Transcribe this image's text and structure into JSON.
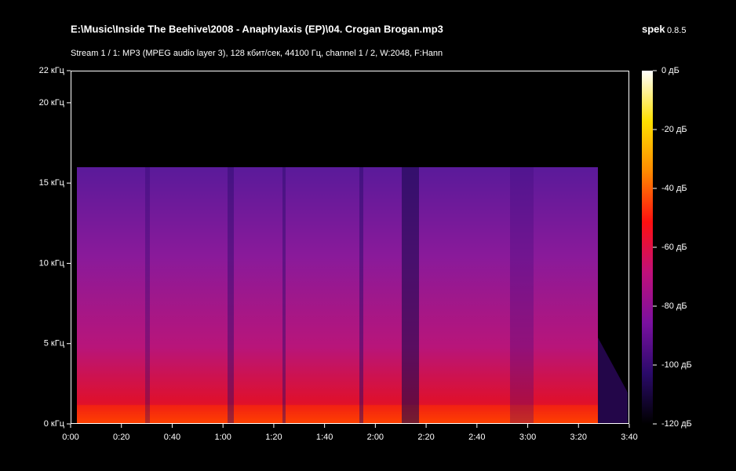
{
  "chart_data": {
    "type": "spectrogram",
    "title": "E:\\Music\\Inside The Beehive\\2008 - Anaphylaxis (EP)\\04. Crogan Brogan.mp3",
    "app_name": "spek",
    "app_version": "0.8.5",
    "subtitle": "Stream 1 / 1: MP3 (MPEG audio layer 3), 128 кбит/сек, 44100 Гц, channel 1 / 2, W:2048, F:Hann",
    "xlim": [
      0,
      220
    ],
    "xticks": [
      {
        "value": 0,
        "label": "0:00"
      },
      {
        "value": 20,
        "label": "0:20"
      },
      {
        "value": 40,
        "label": "0:40"
      },
      {
        "value": 60,
        "label": "1:00"
      },
      {
        "value": 80,
        "label": "1:20"
      },
      {
        "value": 100,
        "label": "1:40"
      },
      {
        "value": 120,
        "label": "2:00"
      },
      {
        "value": 140,
        "label": "2:20"
      },
      {
        "value": 160,
        "label": "2:40"
      },
      {
        "value": 180,
        "label": "3:00"
      },
      {
        "value": 200,
        "label": "3:20"
      },
      {
        "value": 220,
        "label": "3:40"
      }
    ],
    "ylim": [
      0,
      22
    ],
    "yticks": [
      {
        "value": 0,
        "label": "0 кГц"
      },
      {
        "value": 5,
        "label": "5 кГц"
      },
      {
        "value": 10,
        "label": "10 кГц"
      },
      {
        "value": 15,
        "label": "15 кГц"
      },
      {
        "value": 20,
        "label": "20 кГц"
      },
      {
        "value": 22,
        "label": "22 кГц"
      }
    ],
    "colorbar_lim": [
      -120,
      0
    ],
    "colorbar_ticks": [
      {
        "value": 0,
        "label": "0 дБ"
      },
      {
        "value": -20,
        "label": "-20 дБ"
      },
      {
        "value": -40,
        "label": "-40 дБ"
      },
      {
        "value": -60,
        "label": "-60 дБ"
      },
      {
        "value": -80,
        "label": "-80 дБ"
      },
      {
        "value": -100,
        "label": "-100 дБ"
      },
      {
        "value": -120,
        "label": "-120 дБ"
      }
    ],
    "colormap": [
      "#000000",
      "#2a0a6a",
      "#7a10a0",
      "#c0107a",
      "#ff1010",
      "#ff8a00",
      "#ffe000",
      "#ffffff"
    ]
  }
}
